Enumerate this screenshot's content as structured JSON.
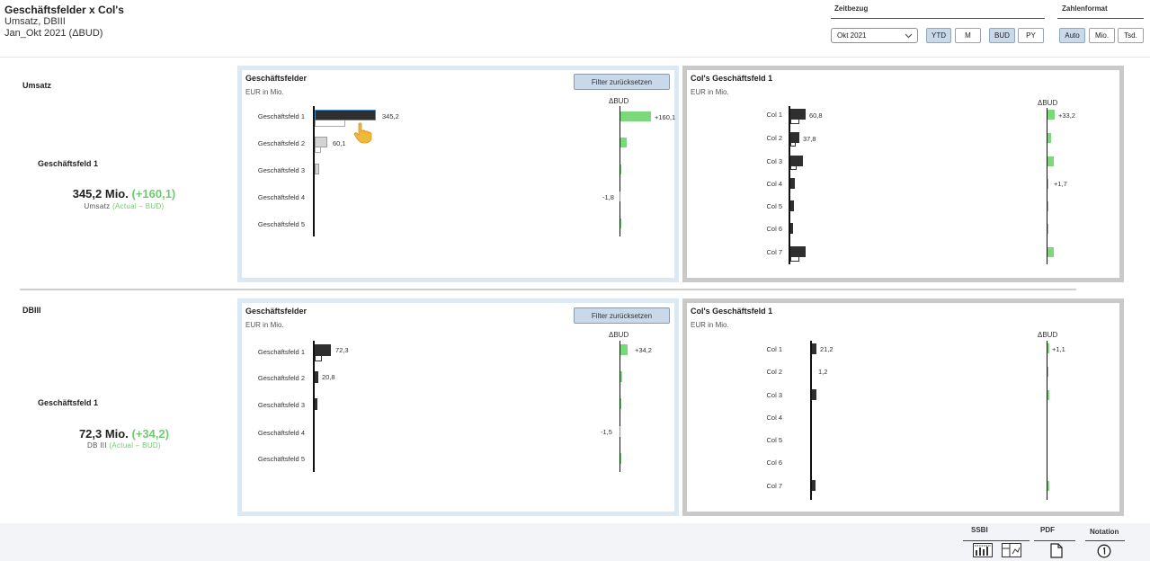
{
  "header": {
    "title": "Geschäftsfelder x Col's",
    "subtitle1": "Umsatz, DBIII",
    "subtitle2": "Jan_Okt 2021 (ΔBUD)"
  },
  "zeitbezug": {
    "label": "Zeitbezug",
    "month_value": "Okt 2021",
    "buttons": [
      "YTD",
      "M",
      "BUD",
      "PY"
    ]
  },
  "zahlenformat": {
    "label": "Zahlenformat",
    "buttons": [
      "Auto",
      "Mio.",
      "Tsd."
    ]
  },
  "sections": [
    {
      "name": "Umsatz",
      "kpi_label": "Geschäftsfeld 1",
      "kpi_value": "345,2 Mio.",
      "kpi_delta": "(+160,1)",
      "kpi_sub_prefix": "Umsatz",
      "kpi_sub_delta": "(Actual – BUD)",
      "left_panel": {
        "title": "Geschäftsfelder",
        "unit": "EUR in Mio.",
        "filter": "Filter zurücksetzen",
        "delta_header": "ΔBUD",
        "categories": [
          "Geschäftsfeld  1",
          "Geschäftsfeld  2",
          "Geschäftsfeld  3",
          "Geschäftsfeld  4",
          "Geschäftsfeld  5"
        ],
        "value_labels": [
          "345,2",
          "60,1",
          "",
          "",
          ""
        ],
        "delta_labels": [
          "+160,1",
          "",
          "",
          "-1,8",
          ""
        ]
      },
      "right_panel": {
        "title": "Col's Geschäftsfeld 1",
        "unit": "EUR in Mio.",
        "delta_header": "ΔBUD",
        "categories": [
          "Col 1",
          "Col 2",
          "Col 3",
          "Col 4",
          "Col 5",
          "Col 6",
          "Col 7"
        ],
        "value_labels": [
          "60,8",
          "37,8",
          "",
          "",
          "",
          "",
          ""
        ],
        "delta_labels": [
          "+33,2",
          "",
          "",
          "+1,7",
          "",
          "",
          ""
        ]
      }
    },
    {
      "name": "DBIII",
      "kpi_label": "Geschäftsfeld 1",
      "kpi_value": "72,3 Mio.",
      "kpi_delta": "(+34,2)",
      "kpi_sub_prefix": "DB III",
      "kpi_sub_delta": "(Actual – BUD)",
      "left_panel": {
        "title": "Geschäftsfelder",
        "unit": "EUR in Mio.",
        "filter": "Filter zurücksetzen",
        "delta_header": "ΔBUD",
        "categories": [
          "Geschäftsfeld  1",
          "Geschäftsfeld  2",
          "Geschäftsfeld  3",
          "Geschäftsfeld  4",
          "Geschäftsfeld  5"
        ],
        "value_labels": [
          "72,3",
          "20,8",
          "",
          "",
          ""
        ],
        "delta_labels": [
          "+34,2",
          "",
          "",
          "-1,5",
          ""
        ]
      },
      "right_panel": {
        "title": "Col's Geschäftsfeld 1",
        "unit": "EUR in Mio.",
        "delta_header": "ΔBUD",
        "categories": [
          "Col 1",
          "Col 2",
          "Col 3",
          "Col 4",
          "Col 5",
          "Col 6",
          "Col 7"
        ],
        "value_labels": [
          "21,2",
          "1,2",
          "",
          "",
          "",
          "",
          ""
        ],
        "delta_labels": [
          "+1,1",
          "",
          "",
          "",
          "",
          "",
          ""
        ]
      }
    }
  ],
  "footer": {
    "ssbi": "SSBI",
    "pdf": "PDF",
    "notation": "Notation"
  },
  "icons": [
    "chevron-down-icon",
    "bar-chart-icon",
    "layout-icon",
    "document-icon",
    "info-icon",
    "pointer-hand-icon"
  ],
  "colors": {
    "positive": "#7bd97b",
    "negative": "#e86a8a",
    "selected_button": "#c9d9ea",
    "bar": "#2f2f2f"
  }
}
